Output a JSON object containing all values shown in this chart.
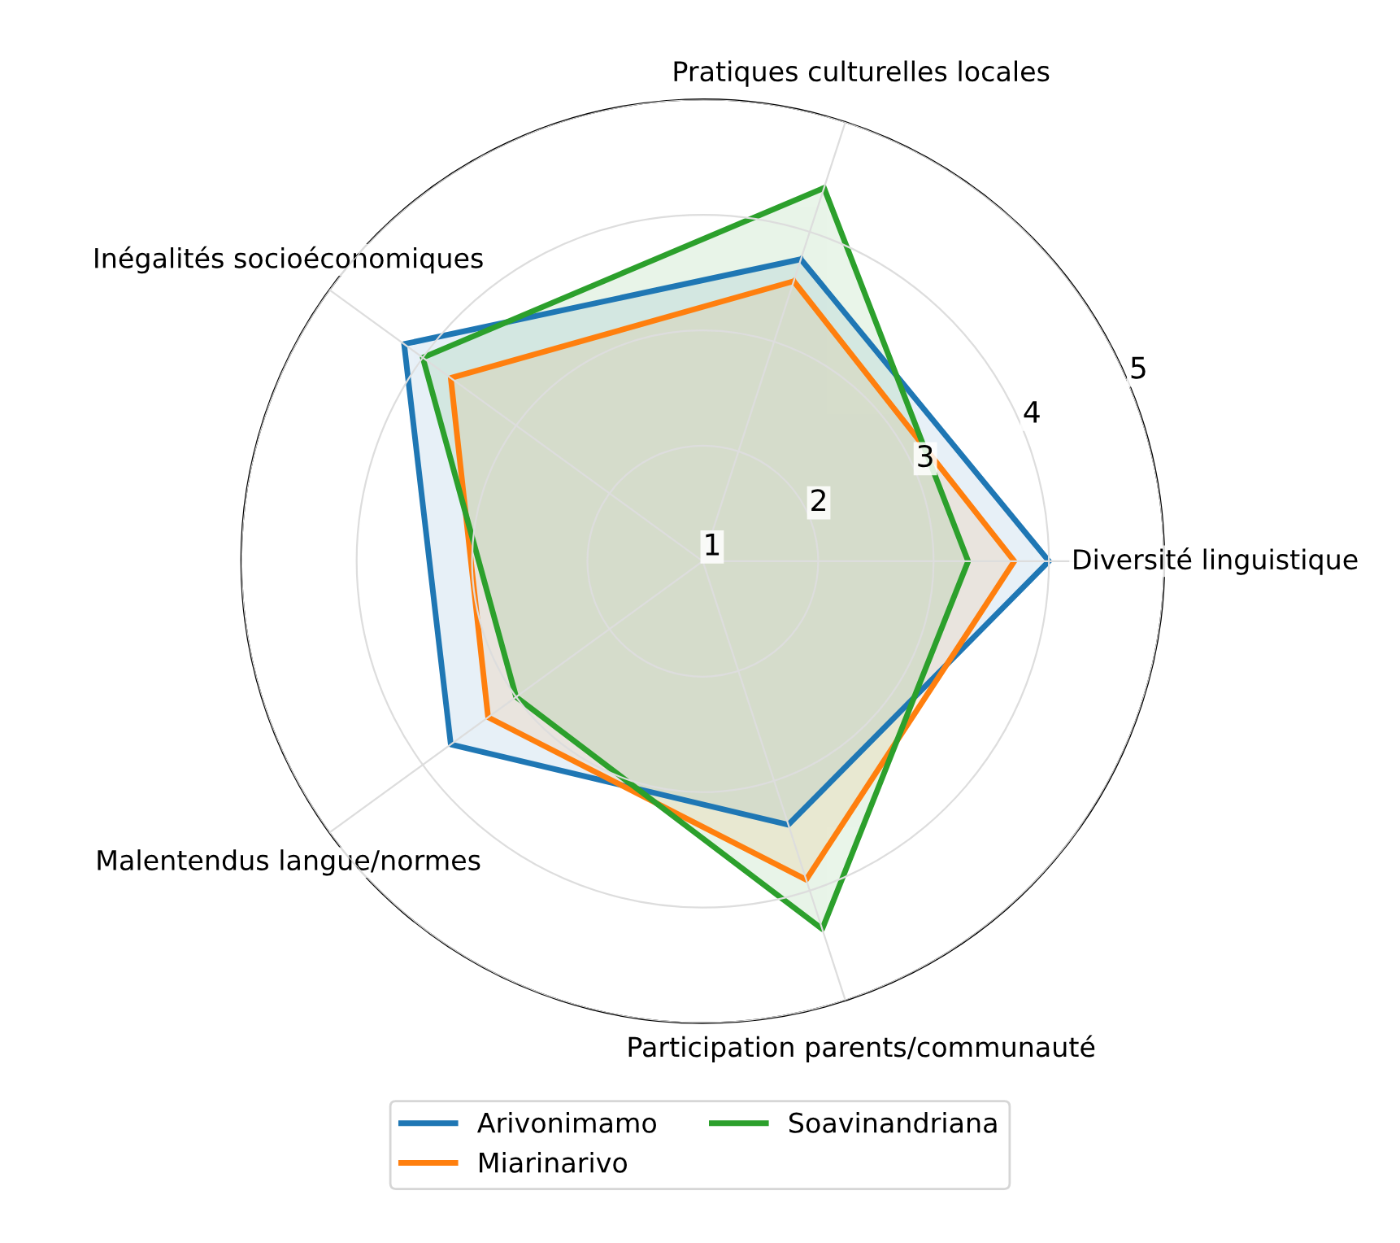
{
  "chart_data": {
    "type": "radar",
    "categories": [
      "Pratiques culturelles locales",
      "Diversité linguistique",
      "Participation parents/communauté",
      "Malentendus langue/normes",
      "Inégalités socioéconomiques"
    ],
    "series": [
      {
        "name": "Arivonimamo",
        "color": "#1f77b4",
        "values": [
          3.75,
          4.0,
          3.4,
          3.7,
          4.2
        ]
      },
      {
        "name": "Miarinarivo",
        "color": "#ff7f0e",
        "values": [
          3.55,
          3.7,
          3.9,
          3.3,
          3.7
        ]
      },
      {
        "name": "Soavinandriana",
        "color": "#2ca02c",
        "values": [
          4.4,
          3.3,
          4.35,
          3.0,
          4.0
        ]
      }
    ],
    "ylim": [
      1,
      5
    ],
    "yticks": [
      1,
      2,
      3,
      4,
      5
    ],
    "grid": true,
    "legend": "bottom"
  }
}
